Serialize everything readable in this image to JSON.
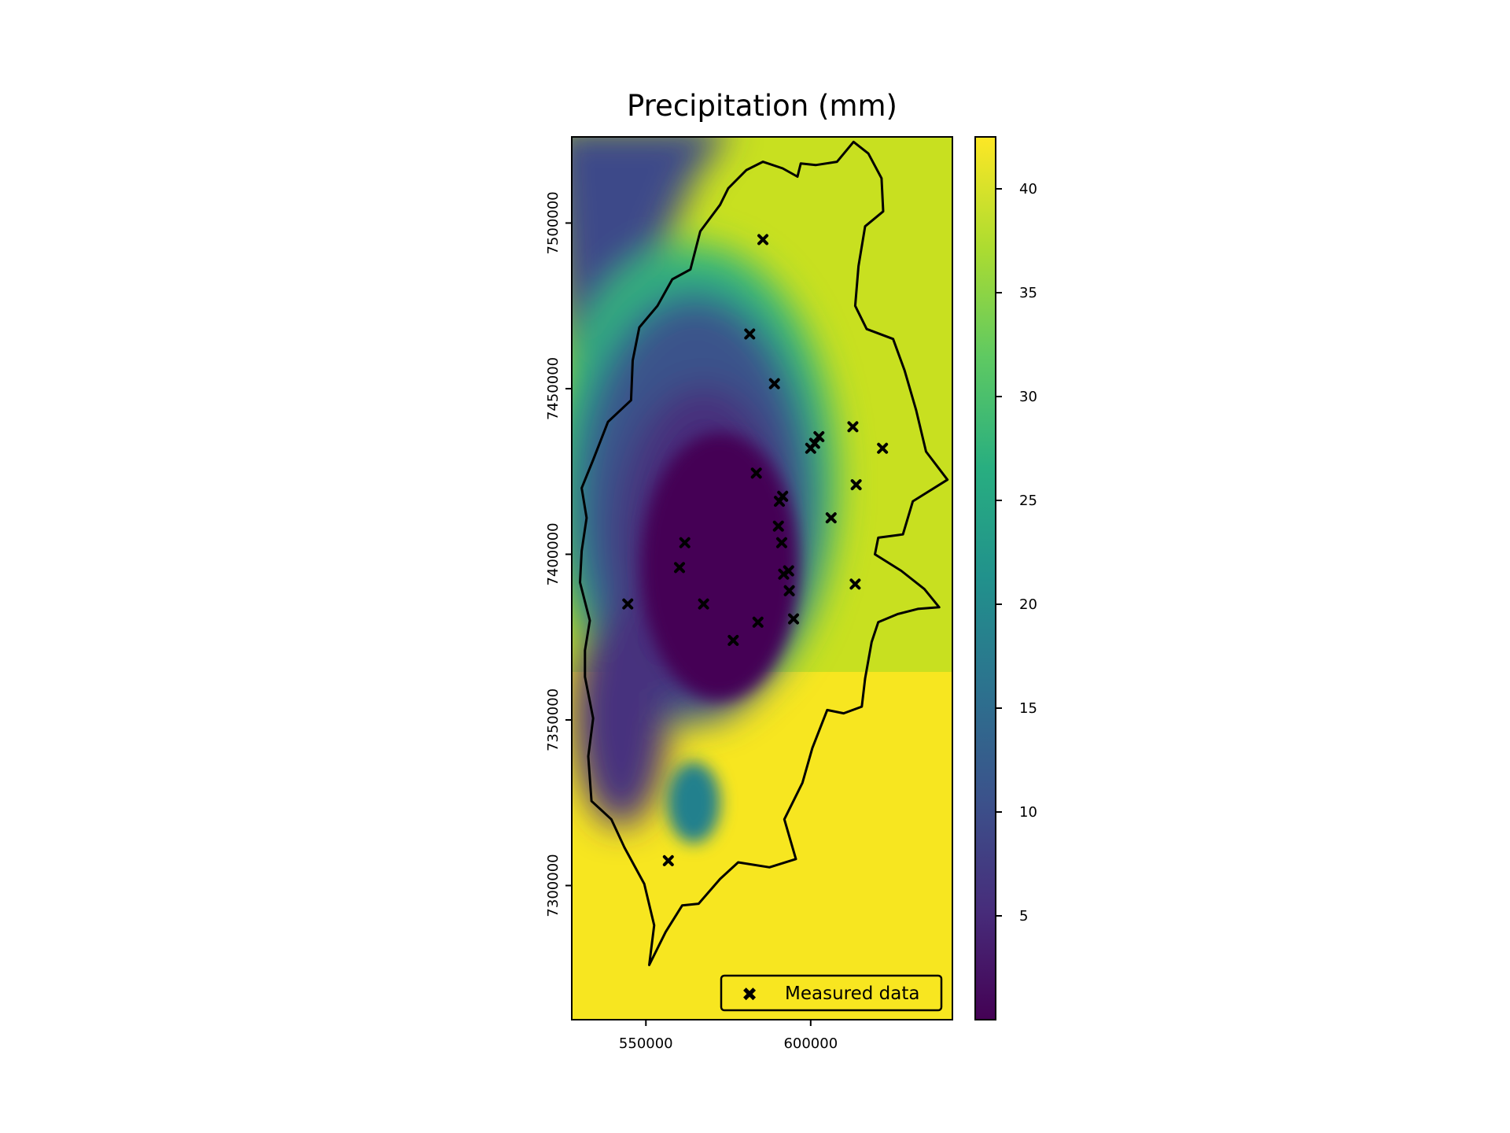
{
  "chart_data": {
    "type": "heatmap",
    "title": "Precipitation (mm)",
    "xlabel": "",
    "ylabel": "",
    "xlim": [
      527500,
      643000
    ],
    "ylim": [
      7259500,
      7526000
    ],
    "x_ticks": [
      550000,
      600000
    ],
    "x_tick_labels": [
      "550000",
      "600000"
    ],
    "y_ticks": [
      7300000,
      7350000,
      7400000,
      7450000,
      7500000
    ],
    "y_tick_labels": [
      "7300000",
      "7350000",
      "7400000",
      "7450000",
      "7500000"
    ],
    "colorbar": {
      "colormap": "viridis",
      "range": [
        0,
        42.5
      ],
      "ticks": [
        5,
        10,
        15,
        20,
        25,
        30,
        35,
        40
      ],
      "tick_labels": [
        "5",
        "10",
        "15",
        "20",
        "25",
        "30",
        "35",
        "40"
      ]
    },
    "legend": {
      "placement": "lower-right",
      "entries": [
        "Measured data"
      ]
    },
    "grid": false,
    "field": {
      "background_north_east": 37,
      "background_north_west": 5,
      "background_south": 41,
      "regions": [
        {
          "name": "low-precipitation core",
          "center": [
            578000,
            7405000
          ],
          "value": 2
        },
        {
          "name": "southern pocket",
          "center": [
            568000,
            7330000
          ],
          "value": 18
        }
      ]
    },
    "measured_points": [
      {
        "x": 585500,
        "y": 7495000
      },
      {
        "x": 581500,
        "y": 7466500
      },
      {
        "x": 589000,
        "y": 7451500
      },
      {
        "x": 612800,
        "y": 7438500
      },
      {
        "x": 602500,
        "y": 7435500
      },
      {
        "x": 601200,
        "y": 7433500
      },
      {
        "x": 600000,
        "y": 7432000
      },
      {
        "x": 621800,
        "y": 7432000
      },
      {
        "x": 583500,
        "y": 7424500
      },
      {
        "x": 613800,
        "y": 7421000
      },
      {
        "x": 591500,
        "y": 7417500
      },
      {
        "x": 590500,
        "y": 7416000
      },
      {
        "x": 606200,
        "y": 7411000
      },
      {
        "x": 590200,
        "y": 7408500
      },
      {
        "x": 561800,
        "y": 7403500
      },
      {
        "x": 591200,
        "y": 7403500
      },
      {
        "x": 560200,
        "y": 7396000
      },
      {
        "x": 593300,
        "y": 7395000
      },
      {
        "x": 591800,
        "y": 7394000
      },
      {
        "x": 613500,
        "y": 7391000
      },
      {
        "x": 593500,
        "y": 7389000
      },
      {
        "x": 544500,
        "y": 7385000
      },
      {
        "x": 567500,
        "y": 7385000
      },
      {
        "x": 594800,
        "y": 7380500
      },
      {
        "x": 584000,
        "y": 7379500
      },
      {
        "x": 576500,
        "y": 7374000
      },
      {
        "x": 556800,
        "y": 7307500
      }
    ],
    "boundary": [
      [
        601500,
        7517500
      ],
      [
        608000,
        7518500
      ],
      [
        613000,
        7524500
      ],
      [
        617500,
        7521000
      ],
      [
        621500,
        7513500
      ],
      [
        622000,
        7503500
      ],
      [
        616500,
        7499000
      ],
      [
        614500,
        7487000
      ],
      [
        613500,
        7475000
      ],
      [
        617000,
        7468000
      ],
      [
        625000,
        7465000
      ],
      [
        628500,
        7455500
      ],
      [
        632000,
        7443500
      ],
      [
        635000,
        7431000
      ],
      [
        641500,
        7422500
      ],
      [
        631000,
        7416000
      ],
      [
        628000,
        7406000
      ],
      [
        620500,
        7405000
      ],
      [
        619500,
        7400000
      ],
      [
        627500,
        7395000
      ],
      [
        634500,
        7389500
      ],
      [
        639000,
        7384000
      ],
      [
        632500,
        7383500
      ],
      [
        626500,
        7382000
      ],
      [
        620500,
        7379500
      ],
      [
        618500,
        7373500
      ],
      [
        616500,
        7362500
      ],
      [
        615500,
        7354000
      ],
      [
        610000,
        7352000
      ],
      [
        605000,
        7353000
      ],
      [
        600500,
        7341500
      ],
      [
        597500,
        7331000
      ],
      [
        592000,
        7320000
      ],
      [
        595500,
        7308000
      ],
      [
        587500,
        7305500
      ],
      [
        578000,
        7307000
      ],
      [
        572500,
        7302000
      ],
      [
        566000,
        7294500
      ],
      [
        561000,
        7294000
      ],
      [
        556000,
        7286000
      ],
      [
        551000,
        7276000
      ],
      [
        552500,
        7288000
      ],
      [
        549500,
        7300500
      ],
      [
        543500,
        7311500
      ],
      [
        539500,
        7320000
      ],
      [
        533500,
        7325500
      ],
      [
        532500,
        7339000
      ],
      [
        534000,
        7350500
      ],
      [
        531500,
        7363000
      ],
      [
        531500,
        7371000
      ],
      [
        533000,
        7380000
      ],
      [
        530000,
        7391500
      ],
      [
        530500,
        7401000
      ],
      [
        532000,
        7411000
      ],
      [
        530500,
        7420000
      ],
      [
        534000,
        7428500
      ],
      [
        538500,
        7440000
      ],
      [
        545500,
        7446500
      ],
      [
        546000,
        7458500
      ],
      [
        548000,
        7468500
      ],
      [
        553500,
        7475000
      ],
      [
        558000,
        7483000
      ],
      [
        563500,
        7486000
      ],
      [
        566500,
        7497500
      ],
      [
        572500,
        7505500
      ],
      [
        575000,
        7510500
      ],
      [
        580500,
        7516000
      ],
      [
        585500,
        7518500
      ],
      [
        591500,
        7516500
      ],
      [
        596000,
        7514000
      ],
      [
        597000,
        7518000
      ]
    ]
  }
}
